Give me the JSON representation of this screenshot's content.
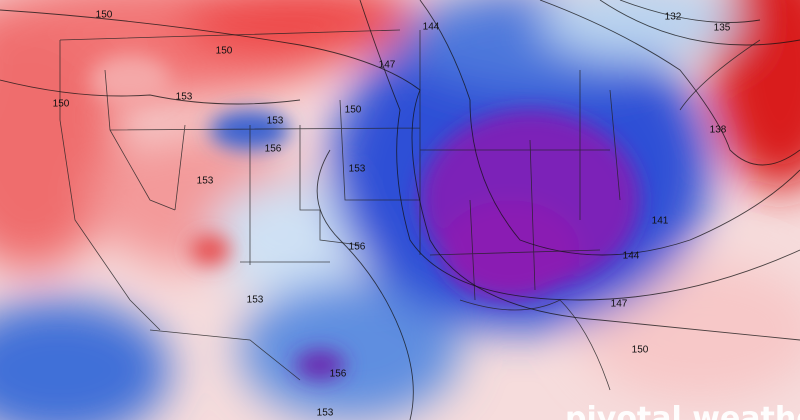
{
  "contour_labels": [
    150,
    150,
    150,
    153,
    153,
    156,
    153,
    150,
    147,
    144,
    153,
    156,
    153,
    156,
    153,
    132,
    135,
    138,
    141,
    144,
    147,
    150
  ],
  "watermark": "pivotal weather"
}
